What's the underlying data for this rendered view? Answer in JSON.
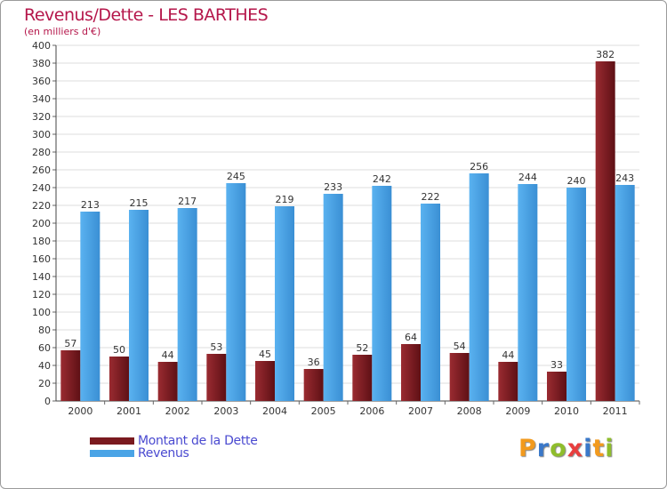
{
  "chart_data": {
    "type": "bar",
    "title": "Revenus/Dette - LES BARTHES",
    "subtitle": "(en milliers d'€)",
    "categories": [
      "2000",
      "2001",
      "2002",
      "2003",
      "2004",
      "2005",
      "2006",
      "2007",
      "2008",
      "2009",
      "2010",
      "2011"
    ],
    "series": [
      {
        "name": "Montant de la Dette",
        "color": "#7a1a1f",
        "values": [
          57,
          50,
          44,
          53,
          45,
          36,
          52,
          64,
          54,
          44,
          33,
          382
        ]
      },
      {
        "name": "Revenus",
        "color": "#4aa4e6",
        "values": [
          213,
          215,
          217,
          245,
          219,
          233,
          242,
          222,
          256,
          244,
          240,
          243
        ]
      }
    ],
    "ylim": [
      0,
      400
    ],
    "ytick_step": 20,
    "grid": true,
    "legend_position": "bottom-left"
  },
  "logo": {
    "text": "Proxiti",
    "colors": [
      "#f29a1d",
      "#3a78c9",
      "#8fbd2c",
      "#e83e3e",
      "#3a78c9",
      "#f29a1d",
      "#8fbd2c"
    ]
  }
}
